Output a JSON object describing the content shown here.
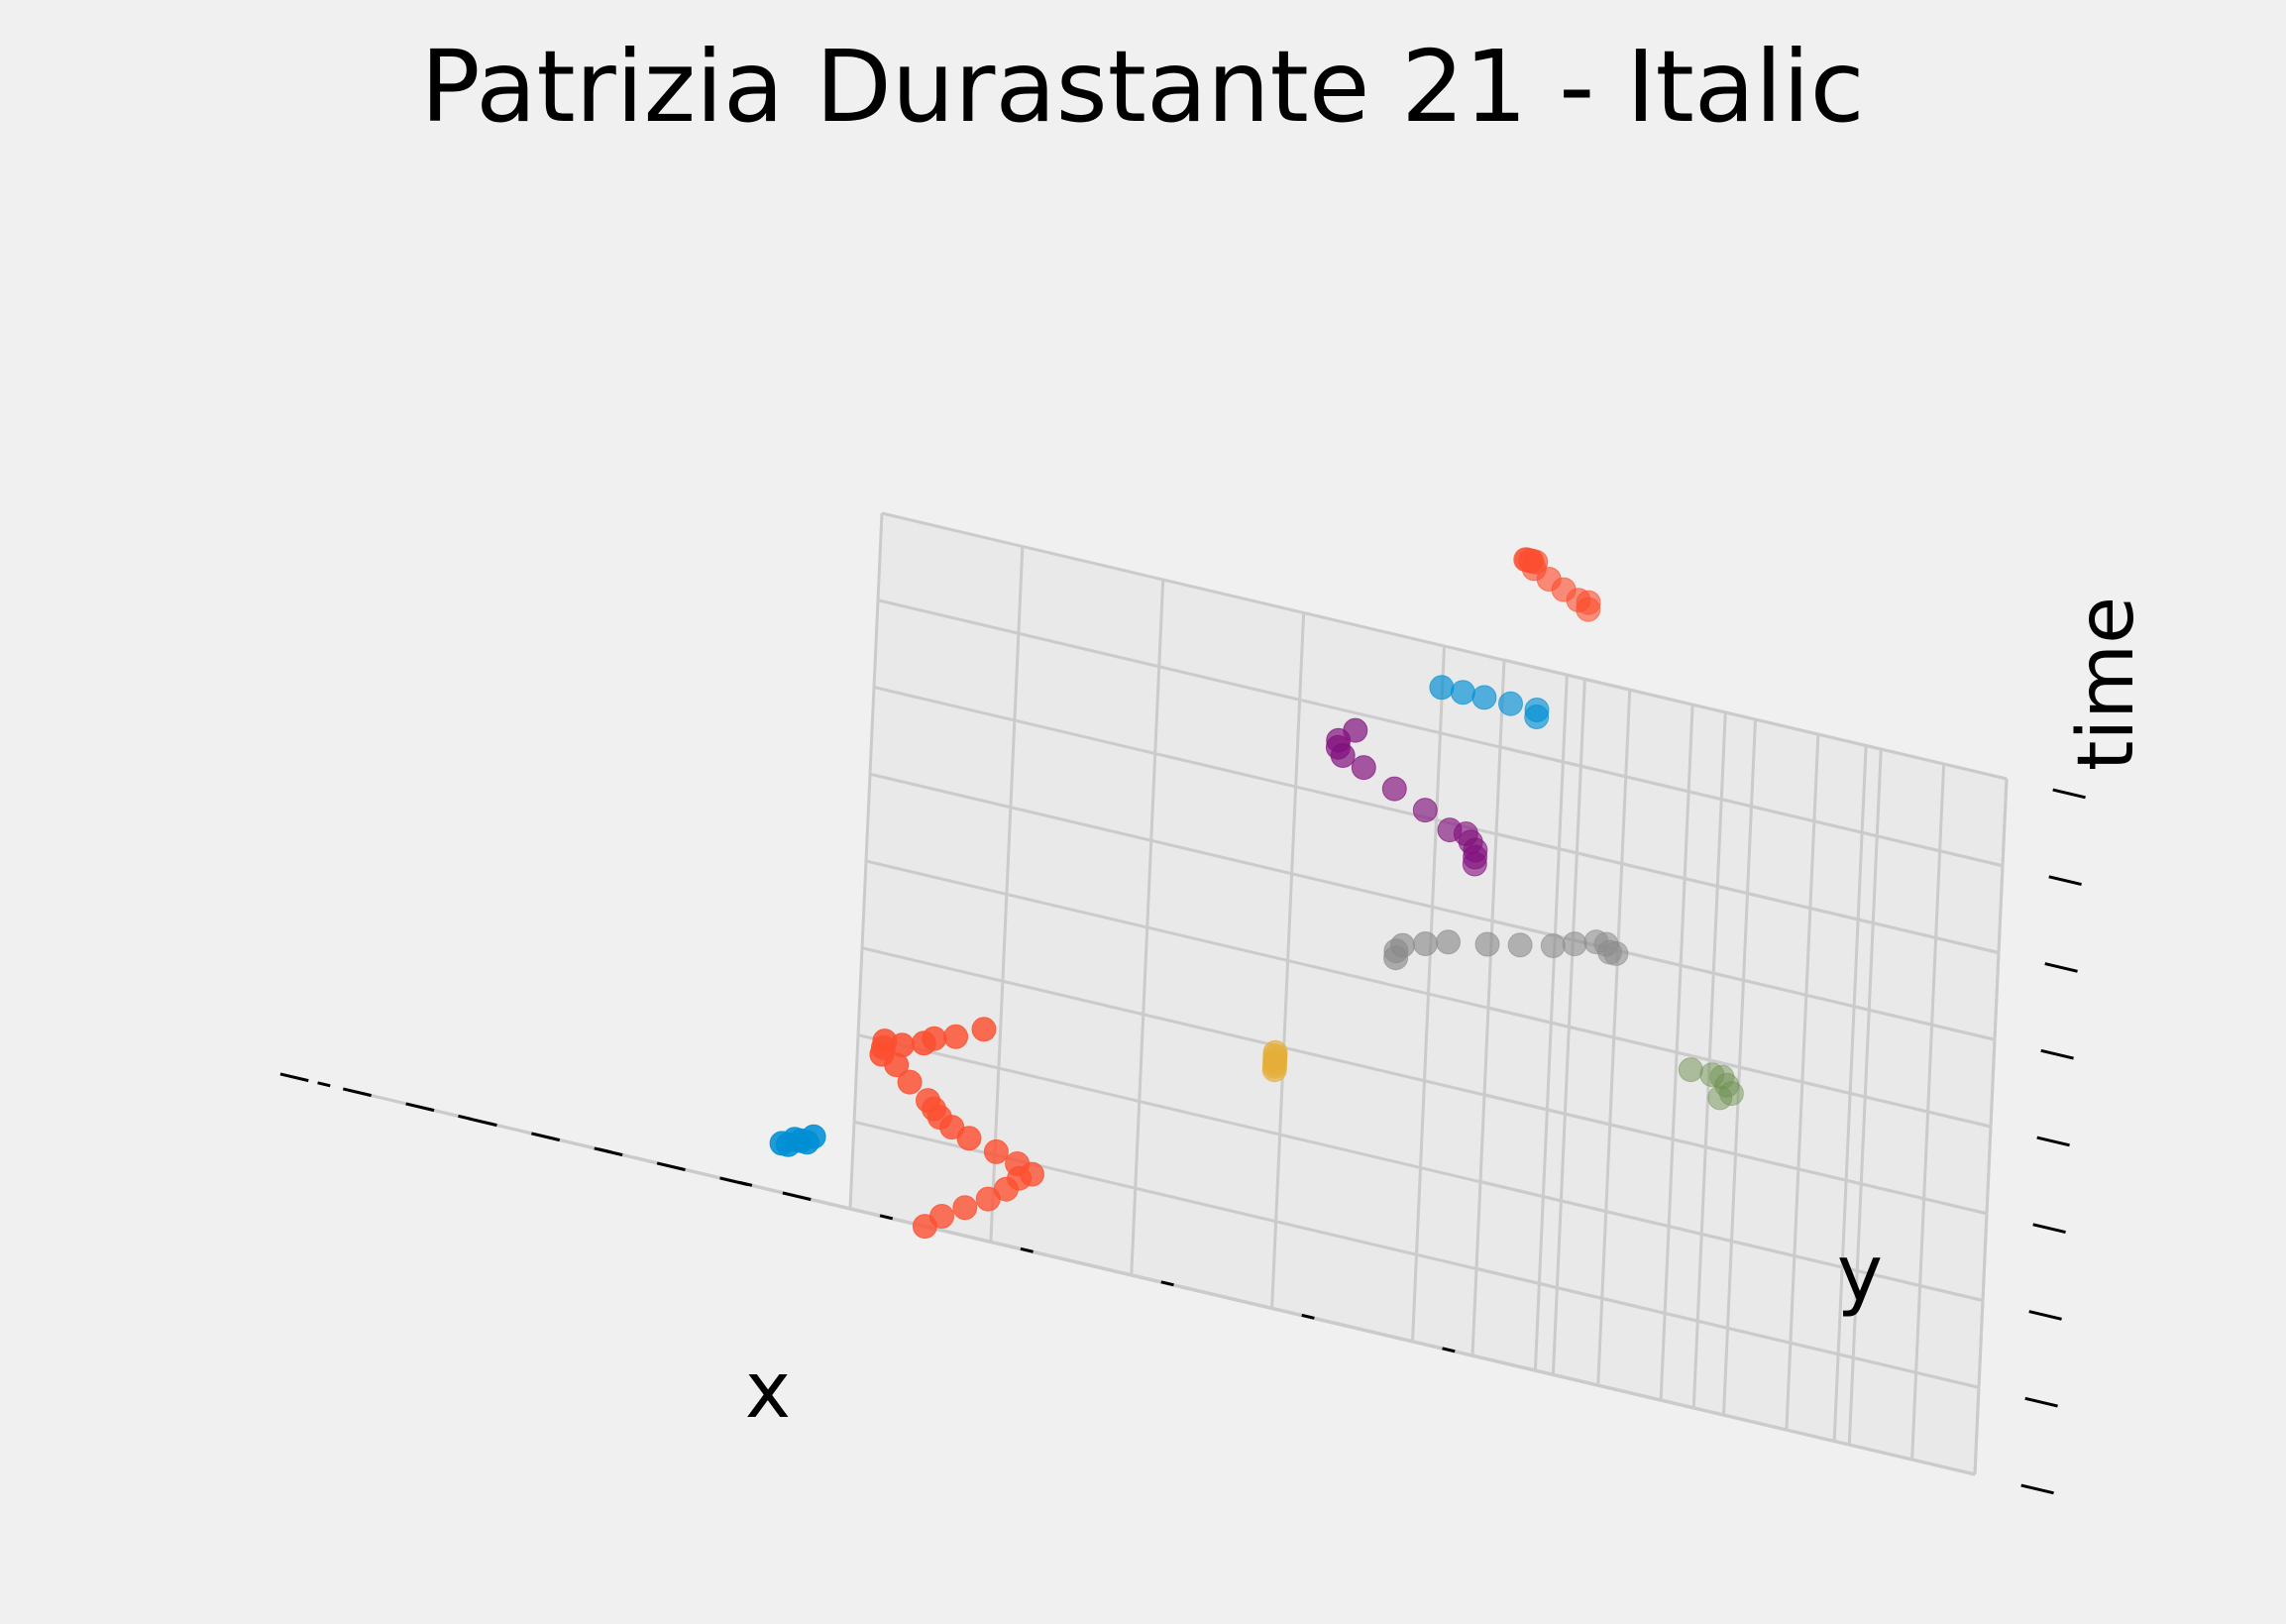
{
  "chart_data": {
    "type": "scatter",
    "projection": "3d",
    "title": "Patrizia Durastante 21 - Italic",
    "xlabel": "x",
    "ylabel": "y",
    "zlabel": "time",
    "xlim": [
      0,
      1
    ],
    "ylim": [
      0,
      1
    ],
    "zlim": [
      0,
      1
    ],
    "grid": true,
    "tick_labels": false,
    "background": "#f0f0f0",
    "series": [
      {
        "color": "#fc4f30",
        "points": [
          [
            0.59,
            0.33,
            0.0
          ],
          [
            0.58,
            0.34,
            0.02
          ],
          [
            0.58,
            0.36,
            0.04
          ],
          [
            0.58,
            0.38,
            0.06
          ],
          [
            0.59,
            0.4,
            0.08
          ],
          [
            0.61,
            0.42,
            0.1
          ],
          [
            0.63,
            0.44,
            0.11
          ],
          [
            0.66,
            0.44,
            0.12
          ],
          [
            0.68,
            0.43,
            0.13
          ],
          [
            0.69,
            0.41,
            0.14
          ],
          [
            0.68,
            0.39,
            0.15
          ],
          [
            0.66,
            0.37,
            0.16
          ],
          [
            0.65,
            0.36,
            0.17
          ],
          [
            0.64,
            0.35,
            0.18
          ],
          [
            0.7,
            0.36,
            0.2
          ],
          [
            0.75,
            0.37,
            0.22
          ],
          [
            0.78,
            0.37,
            0.23
          ],
          [
            0.8,
            0.38,
            0.24
          ],
          [
            0.82,
            0.39,
            0.25
          ],
          [
            0.83,
            0.41,
            0.25
          ],
          [
            0.81,
            0.42,
            0.26
          ],
          [
            0.79,
            0.42,
            0.27
          ],
          [
            0.77,
            0.43,
            0.28
          ],
          [
            0.76,
            0.45,
            0.3
          ]
        ]
      },
      {
        "color": "#008fd5",
        "points": [
          [
            0.7,
            0.25,
            0.07
          ],
          [
            0.71,
            0.26,
            0.07
          ],
          [
            0.72,
            0.27,
            0.08
          ],
          [
            0.73,
            0.28,
            0.08
          ],
          [
            0.74,
            0.29,
            0.08
          ],
          [
            0.75,
            0.3,
            0.09
          ]
        ]
      },
      {
        "color": "#e5ae38",
        "points": [
          [
            0.52,
            0.6,
            0.34
          ],
          [
            0.52,
            0.6,
            0.345
          ],
          [
            0.52,
            0.6,
            0.35
          ],
          [
            0.52,
            0.6,
            0.355
          ],
          [
            0.52,
            0.6,
            0.36
          ],
          [
            0.52,
            0.6,
            0.365
          ]
        ]
      },
      {
        "color": "#6d904f",
        "points": [
          [
            0.2,
            0.85,
            0.45
          ],
          [
            0.2,
            0.86,
            0.46
          ],
          [
            0.21,
            0.86,
            0.47
          ],
          [
            0.22,
            0.86,
            0.48
          ],
          [
            0.24,
            0.86,
            0.48
          ],
          [
            0.26,
            0.85,
            0.48
          ]
        ]
      },
      {
        "color": "#810f7c",
        "points": [
          [
            0.48,
            0.75,
            0.7
          ],
          [
            0.48,
            0.75,
            0.71
          ],
          [
            0.48,
            0.75,
            0.72
          ],
          [
            0.49,
            0.75,
            0.73
          ],
          [
            0.5,
            0.75,
            0.74
          ],
          [
            0.51,
            0.74,
            0.74
          ],
          [
            0.56,
            0.74,
            0.76
          ],
          [
            0.6,
            0.73,
            0.78
          ],
          [
            0.64,
            0.72,
            0.8
          ],
          [
            0.66,
            0.71,
            0.81
          ],
          [
            0.67,
            0.71,
            0.82
          ],
          [
            0.67,
            0.71,
            0.83
          ],
          [
            0.66,
            0.72,
            0.85
          ]
        ]
      },
      {
        "color": "#8b8b8b",
        "points": [
          [
            0.43,
            0.85,
            0.62
          ],
          [
            0.44,
            0.86,
            0.62
          ],
          [
            0.46,
            0.86,
            0.63
          ],
          [
            0.48,
            0.86,
            0.63
          ],
          [
            0.5,
            0.85,
            0.62
          ],
          [
            0.52,
            0.84,
            0.61
          ],
          [
            0.54,
            0.82,
            0.6
          ],
          [
            0.56,
            0.8,
            0.59
          ],
          [
            0.57,
            0.77,
            0.58
          ],
          [
            0.57,
            0.75,
            0.57
          ],
          [
            0.57,
            0.73,
            0.56
          ],
          [
            0.56,
            0.72,
            0.55
          ],
          [
            0.56,
            0.72,
            0.54
          ]
        ]
      },
      {
        "color": "#008fd5",
        "points": [
          [
            0.64,
            0.87,
            0.93
          ],
          [
            0.64,
            0.87,
            0.94
          ],
          [
            0.67,
            0.86,
            0.94
          ],
          [
            0.7,
            0.85,
            0.94
          ],
          [
            0.72,
            0.84,
            0.94
          ],
          [
            0.74,
            0.83,
            0.94
          ]
        ]
      },
      {
        "color": "#fc4f30",
        "points": [
          [
            0.66,
            0.92,
            1.1
          ],
          [
            0.66,
            0.92,
            1.11
          ],
          [
            0.68,
            0.92,
            1.11
          ],
          [
            0.71,
            0.92,
            1.12
          ],
          [
            0.74,
            0.92,
            1.13
          ],
          [
            0.77,
            0.92,
            1.14
          ],
          [
            0.79,
            0.93,
            1.15
          ],
          [
            0.8,
            0.93,
            1.15
          ],
          [
            0.81,
            0.93,
            1.15
          ],
          [
            0.82,
            0.94,
            1.15
          ],
          [
            0.83,
            0.94,
            1.15
          ]
        ]
      }
    ]
  }
}
